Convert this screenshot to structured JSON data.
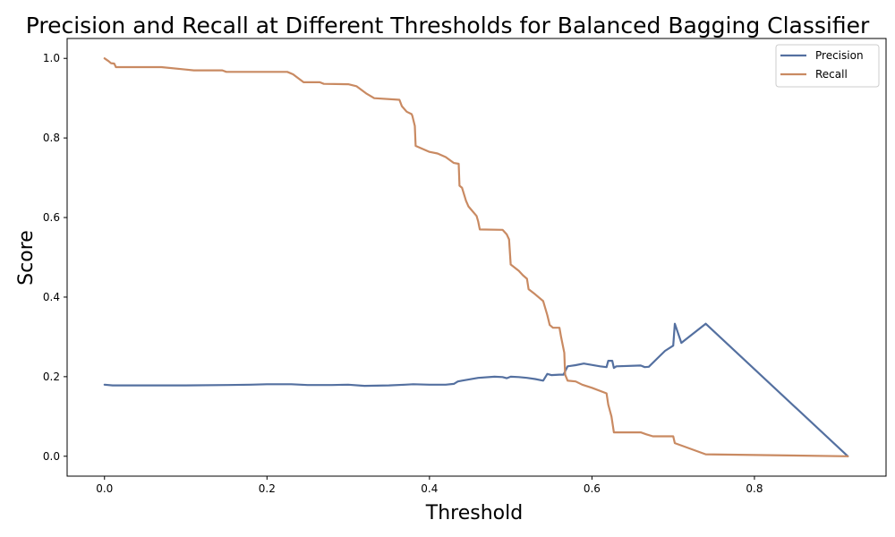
{
  "chart_data": {
    "type": "line",
    "title": "Precision and Recall at Different Thresholds for Balanced Bagging Classifier",
    "xlabel": "Threshold",
    "ylabel": "Score",
    "xlim": [
      -0.046,
      0.962
    ],
    "ylim": [
      -0.05,
      1.05
    ],
    "xticks": [
      0.0,
      0.2,
      0.4,
      0.6,
      0.8
    ],
    "xtick_labels": [
      "0.0",
      "0.2",
      "0.4",
      "0.6",
      "0.8"
    ],
    "yticks": [
      0.0,
      0.2,
      0.4,
      0.6,
      0.8,
      1.0
    ],
    "ytick_labels": [
      "0.0",
      "0.2",
      "0.4",
      "0.6",
      "0.8",
      "1.0"
    ],
    "grid": false,
    "legend_position": "top-right",
    "series": [
      {
        "name": "Precision",
        "color": "#5470a0",
        "x": [
          0.0,
          0.01,
          0.02,
          0.05,
          0.1,
          0.15,
          0.18,
          0.2,
          0.22,
          0.23,
          0.25,
          0.28,
          0.3,
          0.32,
          0.35,
          0.37,
          0.38,
          0.4,
          0.42,
          0.43,
          0.435,
          0.44,
          0.46,
          0.48,
          0.49,
          0.495,
          0.5,
          0.51,
          0.52,
          0.53,
          0.54,
          0.545,
          0.55,
          0.56,
          0.565,
          0.57,
          0.58,
          0.59,
          0.61,
          0.618,
          0.62,
          0.625,
          0.627,
          0.63,
          0.66,
          0.665,
          0.67,
          0.68,
          0.69,
          0.7,
          0.702,
          0.71,
          0.74,
          0.915
        ],
        "y": [
          0.18,
          0.178,
          0.178,
          0.178,
          0.178,
          0.179,
          0.18,
          0.181,
          0.181,
          0.181,
          0.179,
          0.179,
          0.18,
          0.177,
          0.178,
          0.18,
          0.181,
          0.18,
          0.18,
          0.182,
          0.188,
          0.19,
          0.197,
          0.2,
          0.199,
          0.196,
          0.2,
          0.199,
          0.197,
          0.194,
          0.19,
          0.207,
          0.204,
          0.205,
          0.205,
          0.226,
          0.229,
          0.233,
          0.226,
          0.224,
          0.24,
          0.24,
          0.222,
          0.226,
          0.228,
          0.224,
          0.225,
          0.245,
          0.265,
          0.278,
          0.333,
          0.285,
          0.333,
          0.0
        ]
      },
      {
        "name": "Recall",
        "color": "#c98a62",
        "x": [
          0.0,
          0.005,
          0.008,
          0.012,
          0.014,
          0.02,
          0.07,
          0.1,
          0.11,
          0.145,
          0.15,
          0.18,
          0.225,
          0.232,
          0.245,
          0.265,
          0.27,
          0.3,
          0.31,
          0.322,
          0.332,
          0.363,
          0.366,
          0.372,
          0.378,
          0.379,
          0.382,
          0.383,
          0.4,
          0.41,
          0.42,
          0.43,
          0.436,
          0.437,
          0.44,
          0.445,
          0.448,
          0.458,
          0.46,
          0.462,
          0.49,
          0.495,
          0.498,
          0.5,
          0.51,
          0.515,
          0.52,
          0.522,
          0.53,
          0.54,
          0.545,
          0.548,
          0.552,
          0.56,
          0.562,
          0.566,
          0.567,
          0.57,
          0.58,
          0.588,
          0.6,
          0.618,
          0.62,
          0.624,
          0.627,
          0.66,
          0.667,
          0.675,
          0.7,
          0.702,
          0.74,
          0.915
        ],
        "y": [
          1.0,
          0.993,
          0.988,
          0.987,
          0.978,
          0.978,
          0.978,
          0.972,
          0.97,
          0.97,
          0.966,
          0.966,
          0.966,
          0.96,
          0.94,
          0.94,
          0.936,
          0.935,
          0.93,
          0.912,
          0.9,
          0.896,
          0.88,
          0.866,
          0.86,
          0.855,
          0.83,
          0.78,
          0.765,
          0.761,
          0.752,
          0.737,
          0.735,
          0.68,
          0.675,
          0.642,
          0.628,
          0.604,
          0.59,
          0.57,
          0.569,
          0.558,
          0.545,
          0.482,
          0.466,
          0.455,
          0.446,
          0.42,
          0.407,
          0.39,
          0.355,
          0.33,
          0.323,
          0.323,
          0.3,
          0.26,
          0.205,
          0.19,
          0.188,
          0.18,
          0.172,
          0.158,
          0.13,
          0.1,
          0.06,
          0.06,
          0.055,
          0.05,
          0.05,
          0.033,
          0.005,
          0.0
        ]
      }
    ]
  }
}
